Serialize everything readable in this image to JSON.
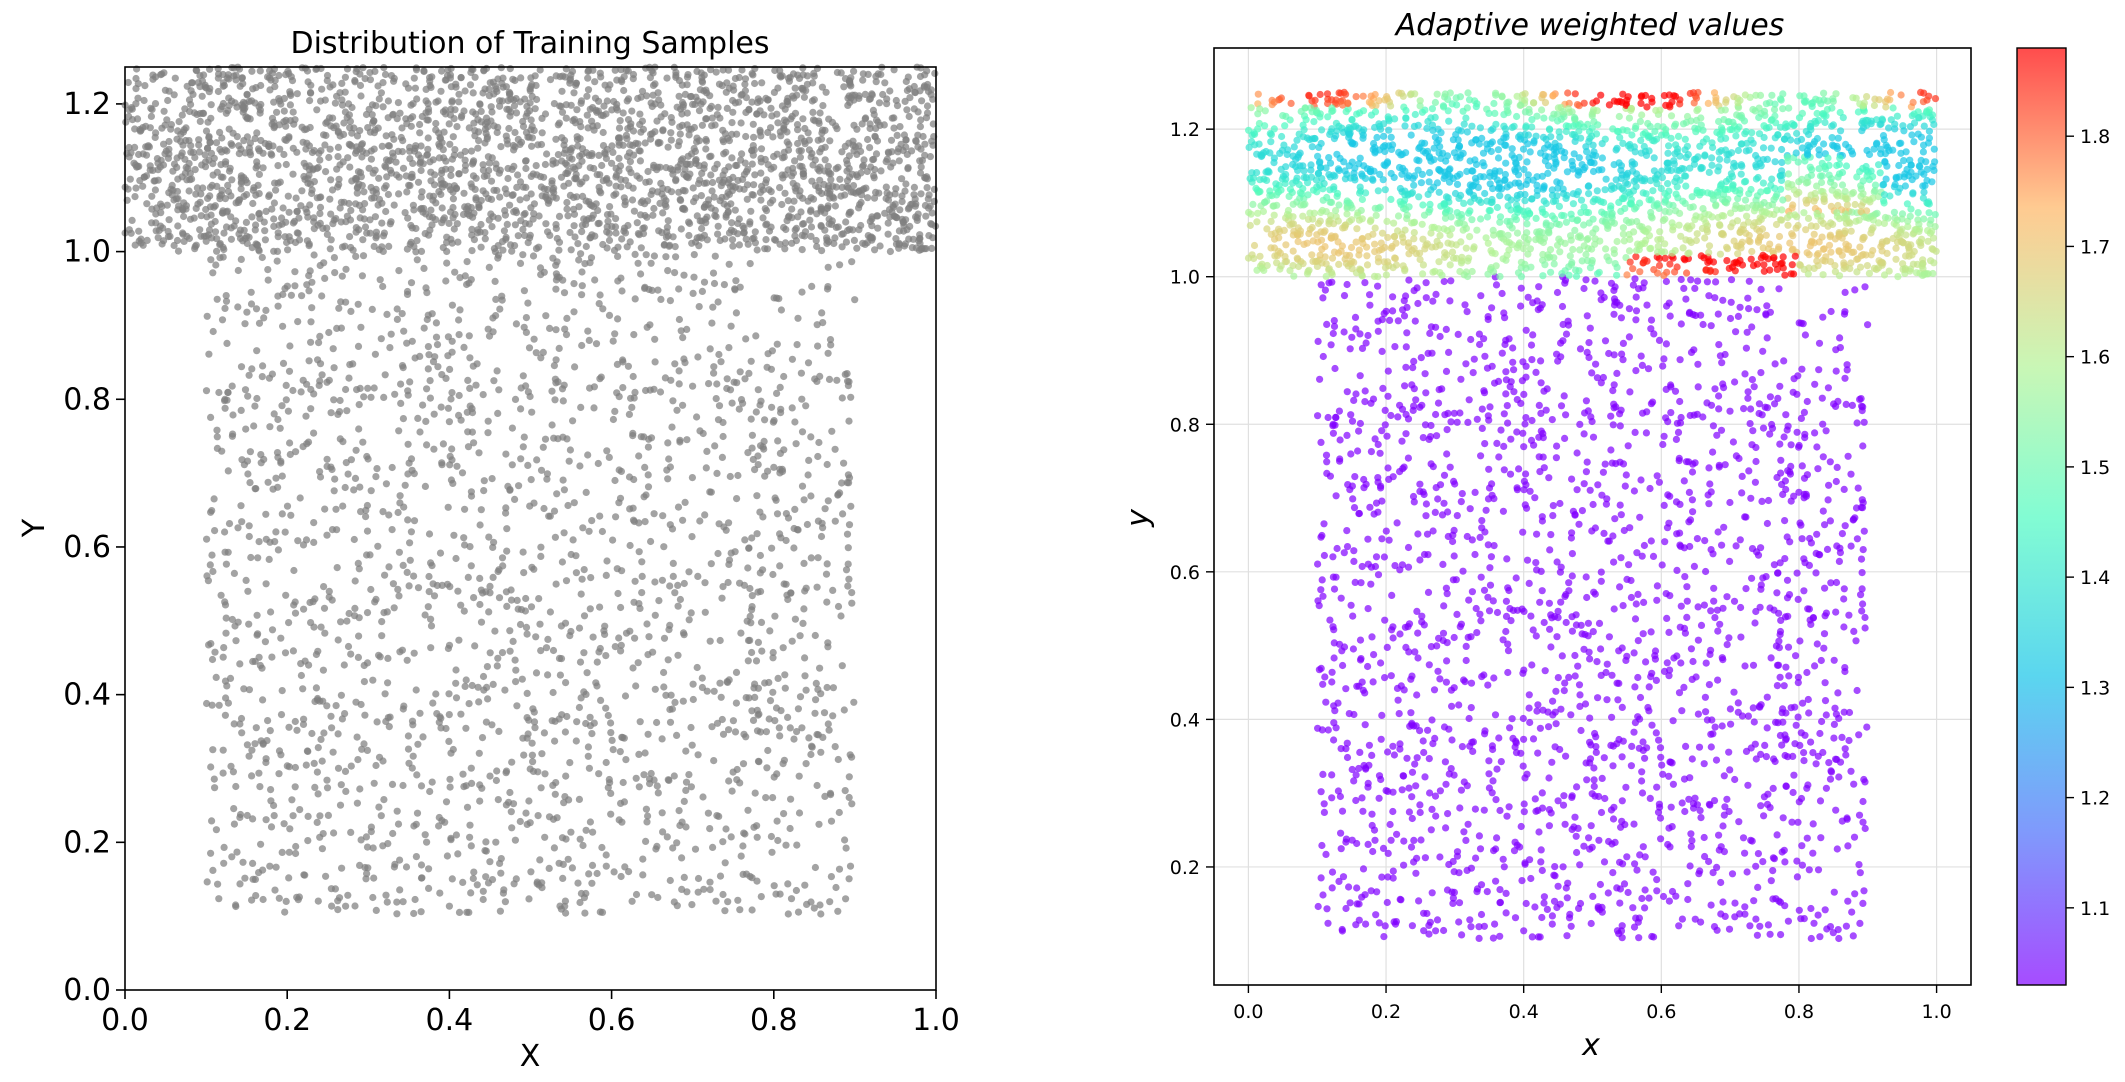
{
  "chart_data": [
    {
      "type": "scatter",
      "title": "Distribution of Training Samples",
      "xlabel": "X",
      "ylabel": "Y",
      "xlim": [
        0.0,
        1.0
      ],
      "ylim": [
        0.0,
        1.25
      ],
      "xticks": [
        "0.0",
        "0.2",
        "0.4",
        "0.6",
        "0.8",
        "1.0"
      ],
      "yticks": [
        "0.0",
        "0.2",
        "0.4",
        "0.6",
        "0.8",
        "1.0",
        "1.2"
      ],
      "grid": false,
      "marker_color": "#808080",
      "regions": [
        {
          "x": [
            0.1,
            0.9
          ],
          "y": [
            0.1,
            1.0
          ],
          "approx_count": 2000
        },
        {
          "x": [
            0.0,
            1.0
          ],
          "y": [
            1.0,
            1.25
          ],
          "approx_count": 2500
        }
      ]
    },
    {
      "type": "scatter",
      "title": "Adaptive weighted values",
      "xlabel": "x",
      "ylabel": "y",
      "xlim": [
        -0.05,
        1.05
      ],
      "ylim": [
        0.04,
        1.31
      ],
      "xticks": [
        "0.0",
        "0.2",
        "0.4",
        "0.6",
        "0.8",
        "1.0"
      ],
      "yticks": [
        "0.2",
        "0.4",
        "0.6",
        "0.8",
        "1.0",
        "1.2"
      ],
      "grid": true,
      "colormap": "rainbow",
      "colorbar": {
        "range": [
          1.03,
          1.88
        ],
        "ticks": [
          "1.1",
          "1.2",
          "1.3",
          "1.4",
          "1.5",
          "1.6",
          "1.7",
          "1.8"
        ]
      },
      "regions": [
        {
          "x": [
            0.1,
            0.9
          ],
          "y": [
            0.1,
            1.0
          ],
          "weight": 1.03,
          "approx_count": 2000
        },
        {
          "x": [
            0.0,
            1.0
          ],
          "y": [
            1.0,
            1.25
          ],
          "weight_range": [
            1.35,
            1.88
          ],
          "approx_count": 2500
        }
      ]
    }
  ]
}
